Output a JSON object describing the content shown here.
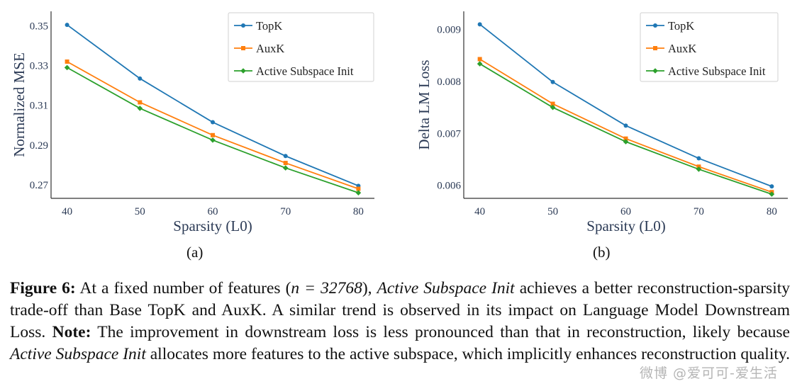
{
  "chart_data": [
    {
      "type": "line",
      "panel_label": "(a)",
      "xlabel": "Sparsity (L0)",
      "ylabel": "Normalized MSE",
      "x": [
        40,
        50,
        60,
        70,
        80
      ],
      "xticks": [
        "40",
        "50",
        "60",
        "70",
        "80"
      ],
      "yticks": [
        "0.27",
        "0.29",
        "0.31",
        "0.33",
        "0.35"
      ],
      "ytick_values": [
        0.27,
        0.29,
        0.31,
        0.33,
        0.35
      ],
      "xlim": [
        37.8,
        82.2
      ],
      "ylim": [
        0.2632,
        0.3573
      ],
      "grid": false,
      "legend_position": "top-right",
      "series": [
        {
          "name": "TopK",
          "color": "#1f77b4",
          "marker": "circle",
          "values": [
            0.3505,
            0.3235,
            0.3015,
            0.2845,
            0.2695
          ]
        },
        {
          "name": "AuxK",
          "color": "#ff7f0e",
          "marker": "square",
          "values": [
            0.332,
            0.3115,
            0.295,
            0.281,
            0.268
          ]
        },
        {
          "name": "Active Subspace Init",
          "color": "#2ca02c",
          "marker": "diamond",
          "values": [
            0.329,
            0.3085,
            0.2925,
            0.2785,
            0.266
          ]
        }
      ]
    },
    {
      "type": "line",
      "panel_label": "(b)",
      "xlabel": "Sparsity (L0)",
      "ylabel": "Delta LM Loss",
      "x": [
        40,
        50,
        60,
        70,
        80
      ],
      "xticks": [
        "40",
        "50",
        "60",
        "70",
        "80"
      ],
      "yticks": [
        "0.006",
        "0.007",
        "0.008",
        "0.009"
      ],
      "ytick_values": [
        0.006,
        0.007,
        0.008,
        0.009
      ],
      "xlim": [
        37.8,
        82.2
      ],
      "ylim": [
        0.00575,
        0.00935
      ],
      "grid": false,
      "legend_position": "top-right",
      "series": [
        {
          "name": "TopK",
          "color": "#1f77b4",
          "marker": "circle",
          "values": [
            0.0091,
            0.00799,
            0.00715,
            0.00652,
            0.00598
          ]
        },
        {
          "name": "AuxK",
          "color": "#ff7f0e",
          "marker": "square",
          "values": [
            0.00843,
            0.00757,
            0.0069,
            0.00636,
            0.00587
          ]
        },
        {
          "name": "Active Subspace Init",
          "color": "#2ca02c",
          "marker": "diamond",
          "values": [
            0.00834,
            0.0075,
            0.00684,
            0.00631,
            0.00583
          ]
        }
      ]
    }
  ],
  "caption": {
    "figure_label": "Figure 6:",
    "part1": " At a fixed number of features (",
    "math": "n = 32768",
    "part2": "), ",
    "italic1": "Active Subspace Init",
    "part3": " achieves a better reconstruction-sparsity trade-off than Base TopK and AuxK. A similar trend is observed in its impact on Language Model Downstream Loss. ",
    "note_label": "Note:",
    "part4": " The improvement in downstream loss is less pronounced than that in reconstruction, likely because ",
    "italic2": "Active Subspace Init",
    "part5": " allocates more features to the active subspace, which implicitly enhances reconstruction quality."
  },
  "watermark": "微博 @爱可可-爱生活"
}
